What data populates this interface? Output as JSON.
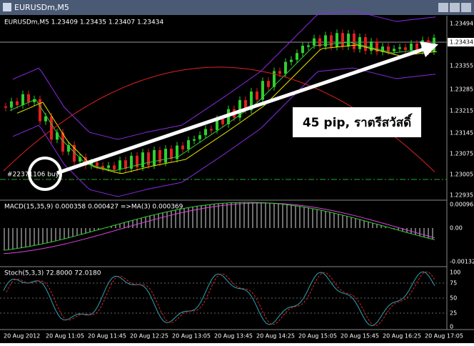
{
  "window": {
    "title": "EURUSDm,M5"
  },
  "price_pane": {
    "header": "EURUSDm,M5  1.23409 1.23435 1.23407 1.23434",
    "scale": [
      "1.23494",
      "1.23434",
      "1.23355",
      "1.23285",
      "1.23215",
      "1.23145",
      "1.23075",
      "1.23005",
      "1.22935"
    ],
    "order_label": "#22371106 buy",
    "annotation": "45 pip, ราตรีสวัสดิ์"
  },
  "macd_pane": {
    "header": "MACD(15,35,9) 0.000358 0.000427  =>MA(3) 0.000369",
    "scale": [
      "0.000965",
      "0.00",
      "-0.00132"
    ]
  },
  "stoch_pane": {
    "header": "Stoch(5,3,3) 72.8000 72.0180",
    "scale": [
      "100",
      "75",
      "50",
      "25",
      "0"
    ]
  },
  "time_axis": [
    "20 Aug 2012",
    "20 Aug 11:05",
    "20 Aug 11:45",
    "20 Aug 12:25",
    "20 Aug 13:05",
    "20 Aug 13:45",
    "20 Aug 14:25",
    "20 Aug 15:05",
    "20 Aug 15:45",
    "20 Aug 16:25",
    "20 Aug 17:05"
  ]
}
